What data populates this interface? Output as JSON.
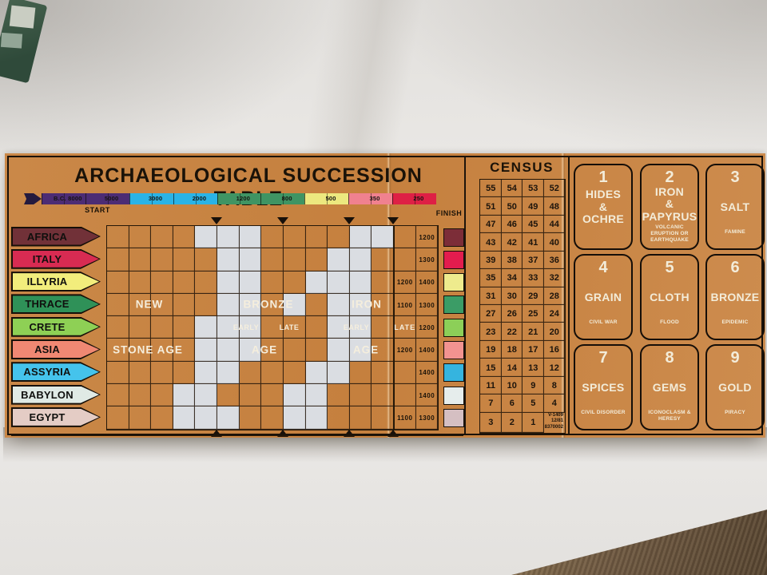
{
  "scene": {
    "desk_color": "#e8e6e3",
    "wood_color": "#6b5640",
    "board_color": "#c6823f",
    "white_cell_color": "#dadde2"
  },
  "board": {
    "title": "ARCHAEOLOGICAL SUCCESSION TABLE",
    "start_label": "START",
    "finish_label": "FINISH",
    "timeline": [
      {
        "label": "B.C. 8000",
        "color": "#4c2c74"
      },
      {
        "label": "5000",
        "color": "#4c2c74"
      },
      {
        "label": "3000",
        "color": "#2ab3e6"
      },
      {
        "label": "2000",
        "color": "#2ab3e6"
      },
      {
        "label": "1200",
        "color": "#3f9463"
      },
      {
        "label": "800",
        "color": "#3f9463"
      },
      {
        "label": "500",
        "color": "#ece87f"
      },
      {
        "label": "350",
        "color": "#f0818f"
      },
      {
        "label": "250",
        "color": "#de2045"
      }
    ],
    "ages": {
      "new": "NEW",
      "stone_age": "STONE AGE",
      "bronze": "BRONZE",
      "iron": "IRON",
      "early": "EARLY",
      "late": "LATE",
      "age": "AGE"
    },
    "civilizations": [
      {
        "name": "AFRICA",
        "color": "#713138",
        "finish1": "",
        "finish2": "1200",
        "swatch": "#7c2d38"
      },
      {
        "name": "ITALY",
        "color": "#d82b52",
        "finish1": "",
        "finish2": "1300",
        "swatch": "#e31c4e"
      },
      {
        "name": "ILLYRIA",
        "color": "#f2ed7c",
        "finish1": "1200",
        "finish2": "1400",
        "swatch": "#eeeb8d"
      },
      {
        "name": "THRACE",
        "color": "#2f9158",
        "finish1": "1100",
        "finish2": "1300",
        "swatch": "#3b9c66"
      },
      {
        "name": "CRETE",
        "color": "#8ed055",
        "finish1": "LATE",
        "finish2": "1200",
        "swatch": "#8ccf58"
      },
      {
        "name": "ASIA",
        "color": "#f08873",
        "finish1": "1200",
        "finish2": "1400",
        "swatch": "#f29390"
      },
      {
        "name": "ASSYRIA",
        "color": "#45c3ec",
        "finish1": "",
        "finish2": "1400",
        "swatch": "#35b4df"
      },
      {
        "name": "BABYLON",
        "color": "#e0eae5",
        "finish1": "",
        "finish2": "1400",
        "swatch": "#e6edec"
      },
      {
        "name": "EGYPT",
        "color": "#e4ccc5",
        "finish1": "1100",
        "finish2": "1300",
        "swatch": "#d5bfc2"
      }
    ],
    "grid": {
      "rows": 9,
      "cols": 13,
      "white_cells": [
        [
          1,
          5
        ],
        [
          1,
          6
        ],
        [
          1,
          7
        ],
        [
          1,
          12
        ],
        [
          1,
          13
        ],
        [
          2,
          6
        ],
        [
          2,
          7
        ],
        [
          2,
          11
        ],
        [
          2,
          12
        ],
        [
          3,
          6
        ],
        [
          3,
          7
        ],
        [
          3,
          10
        ],
        [
          3,
          11
        ],
        [
          3,
          12
        ],
        [
          4,
          6
        ],
        [
          4,
          7
        ],
        [
          4,
          9
        ],
        [
          4,
          11
        ],
        [
          4,
          12
        ],
        [
          5,
          5
        ],
        [
          5,
          6
        ],
        [
          5,
          7
        ],
        [
          5,
          11
        ],
        [
          5,
          12
        ],
        [
          6,
          5
        ],
        [
          6,
          6
        ],
        [
          6,
          7
        ],
        [
          6,
          11
        ],
        [
          6,
          12
        ],
        [
          7,
          5
        ],
        [
          7,
          6
        ],
        [
          7,
          10
        ],
        [
          7,
          11
        ],
        [
          8,
          4
        ],
        [
          8,
          5
        ],
        [
          8,
          9
        ],
        [
          8,
          10
        ],
        [
          9,
          4
        ],
        [
          9,
          5
        ],
        [
          9,
          6
        ],
        [
          9,
          9
        ],
        [
          9,
          10
        ]
      ]
    },
    "census": {
      "title": "CENSUS",
      "rows": [
        [
          "55",
          "54",
          "53",
          "52"
        ],
        [
          "51",
          "50",
          "49",
          "48"
        ],
        [
          "47",
          "46",
          "45",
          "44"
        ],
        [
          "43",
          "42",
          "41",
          "40"
        ],
        [
          "39",
          "38",
          "37",
          "36"
        ],
        [
          "35",
          "34",
          "33",
          "32"
        ],
        [
          "31",
          "30",
          "29",
          "28"
        ],
        [
          "27",
          "26",
          "25",
          "24"
        ],
        [
          "23",
          "22",
          "21",
          "20"
        ],
        [
          "19",
          "18",
          "17",
          "16"
        ],
        [
          "15",
          "14",
          "13",
          "12"
        ],
        [
          "11",
          "10",
          "9",
          "8"
        ],
        [
          "7",
          "6",
          "5",
          "4"
        ],
        [
          "3",
          "2",
          "1",
          ""
        ]
      ],
      "part_code": "V-1409\n12/81\n8370002"
    },
    "cards": [
      {
        "number": "1",
        "name_lines": [
          "HIDES",
          "&",
          "OCHRE"
        ],
        "calamity": ""
      },
      {
        "number": "2",
        "name_lines": [
          "IRON",
          "&",
          "PAPYRUS"
        ],
        "calamity": "VOLCANIC ERUPTION OR EARTHQUAKE"
      },
      {
        "number": "3",
        "name_lines": [
          "SALT"
        ],
        "calamity": "FAMINE"
      },
      {
        "number": "4",
        "name_lines": [
          "GRAIN"
        ],
        "calamity": "CIVIL WAR"
      },
      {
        "number": "5",
        "name_lines": [
          "CLOTH"
        ],
        "calamity": "FLOOD"
      },
      {
        "number": "6",
        "name_lines": [
          "BRONZE"
        ],
        "calamity": "EPIDEMIC"
      },
      {
        "number": "7",
        "name_lines": [
          "SPICES"
        ],
        "calamity": "CIVIL DISORDER"
      },
      {
        "number": "8",
        "name_lines": [
          "GEMS"
        ],
        "calamity": "ICONOCLASM & HERESY"
      },
      {
        "number": "9",
        "name_lines": [
          "GOLD"
        ],
        "calamity": "PIRACY"
      }
    ]
  }
}
